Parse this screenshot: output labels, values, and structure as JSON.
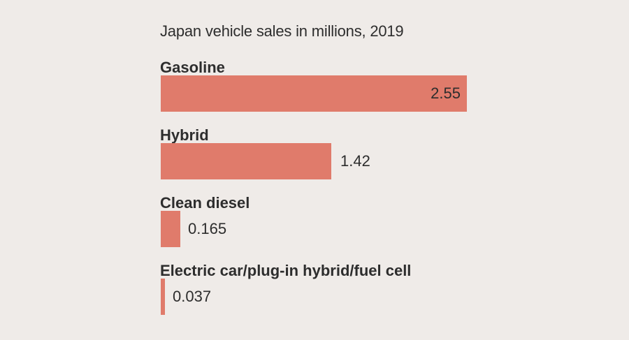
{
  "chart_data": {
    "type": "bar",
    "orientation": "horizontal",
    "title": "Japan vehicle sales in millions, 2019",
    "xlabel": "",
    "ylabel": "",
    "categories": [
      "Gasoline",
      "Hybrid",
      "Clean diesel",
      "Electric car/plug-in hybrid/fuel cell"
    ],
    "values": [
      2.55,
      1.42,
      0.165,
      0.037
    ],
    "value_labels": [
      "2.55",
      "1.42",
      "0.165",
      "0.037"
    ],
    "xlim": [
      0,
      2.55
    ],
    "grid": false,
    "legend": "none",
    "bar_color": "#e07b6b",
    "background_color": "#efebe8"
  }
}
